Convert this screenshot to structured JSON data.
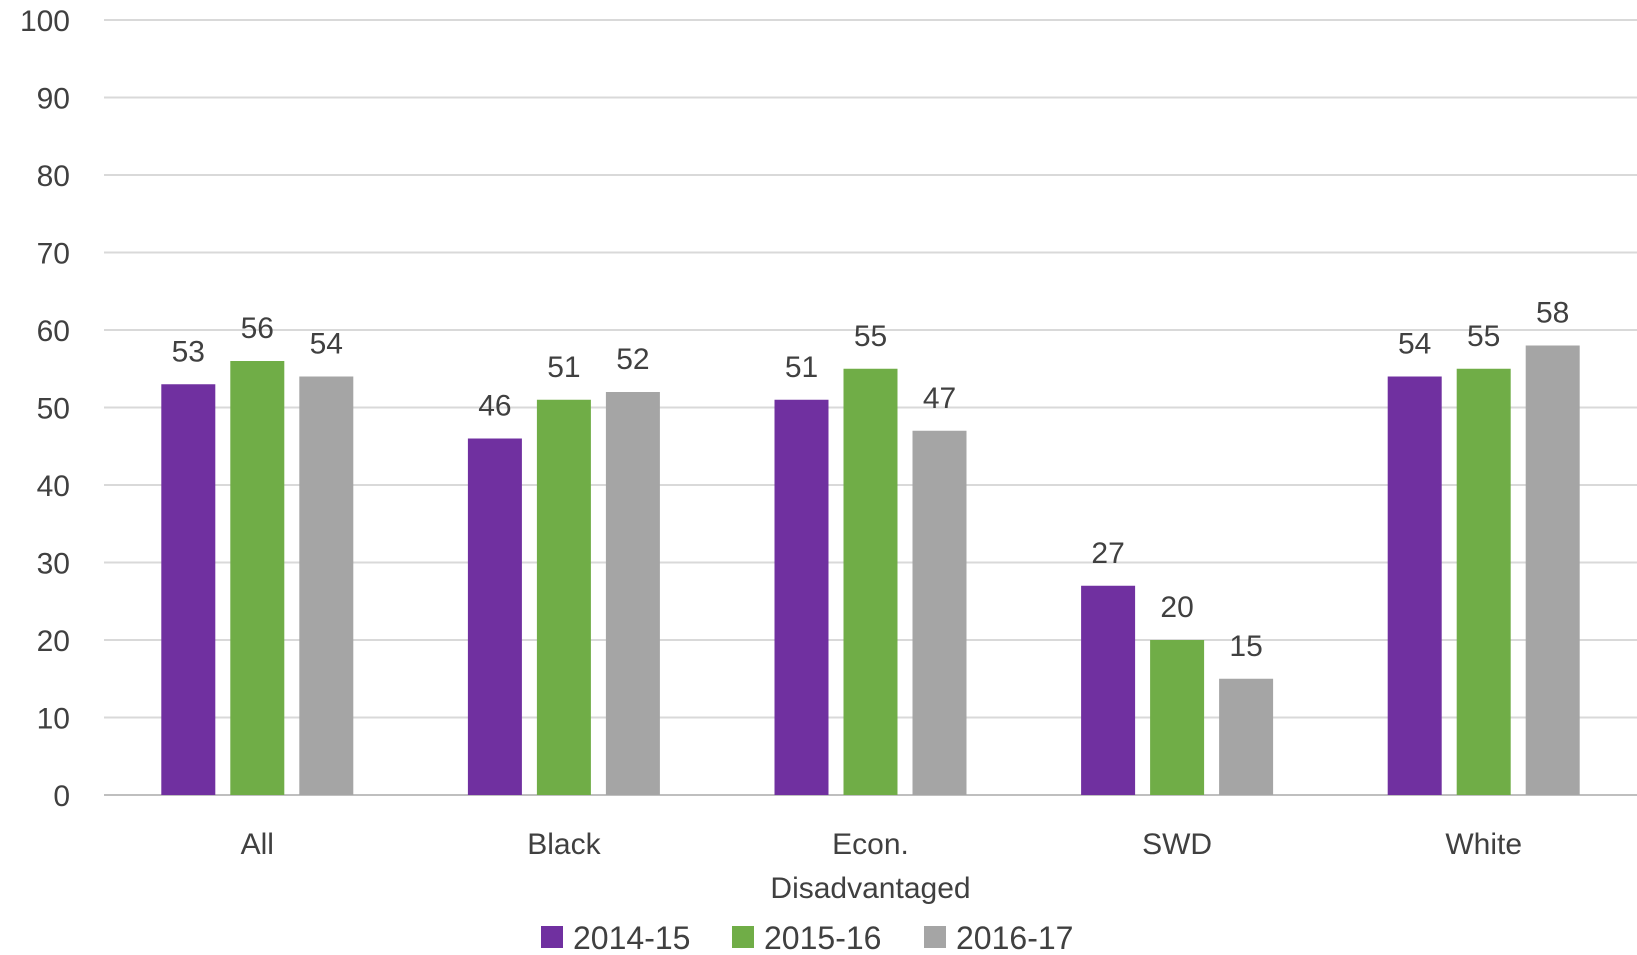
{
  "chart_data": {
    "type": "bar",
    "categories": [
      [
        "All"
      ],
      [
        "Black"
      ],
      [
        "Econ.",
        "Disadvantaged"
      ],
      [
        "SWD"
      ],
      [
        "White"
      ]
    ],
    "series": [
      {
        "name": "2014-15",
        "color": "#7030A0",
        "values": [
          53,
          46,
          51,
          27,
          54
        ]
      },
      {
        "name": "2015-16",
        "color": "#70AD47",
        "values": [
          56,
          51,
          55,
          20,
          55
        ]
      },
      {
        "name": "2016-17",
        "color": "#A5A5A5",
        "values": [
          54,
          52,
          47,
          15,
          58
        ]
      }
    ],
    "yticks": [
      0,
      10,
      20,
      30,
      40,
      50,
      60,
      70,
      80,
      90,
      100
    ],
    "ylim": [
      0,
      100
    ],
    "grid": true,
    "legend": "bottom"
  }
}
